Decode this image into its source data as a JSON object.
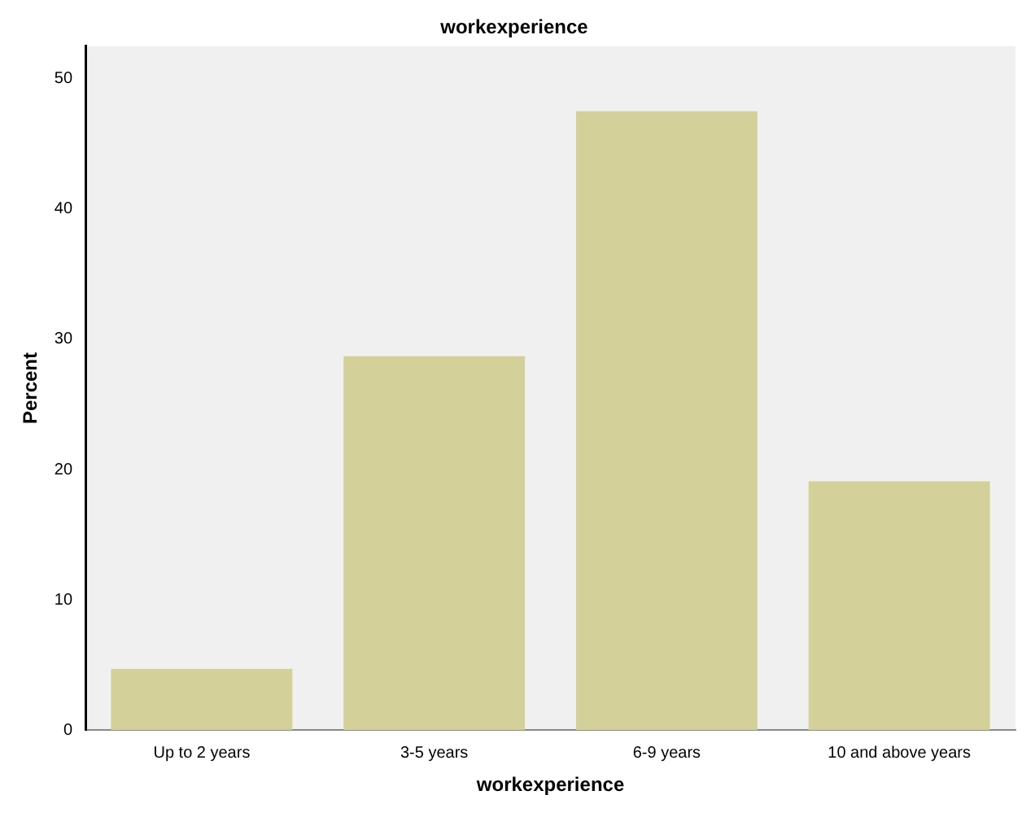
{
  "chart_data": {
    "type": "bar",
    "title": "workexperience",
    "xlabel": "workexperience",
    "ylabel": "Percent",
    "categories": [
      "Up to 2 years",
      "3-5 years",
      "6-9 years",
      "10 and above years"
    ],
    "values": [
      4.7,
      28.7,
      47.5,
      19.1
    ],
    "color": "#d3d09a",
    "ylim": [
      0,
      52.5
    ],
    "yticks": [
      0,
      10,
      20,
      30,
      40,
      50
    ],
    "grid": false,
    "legend": false
  }
}
